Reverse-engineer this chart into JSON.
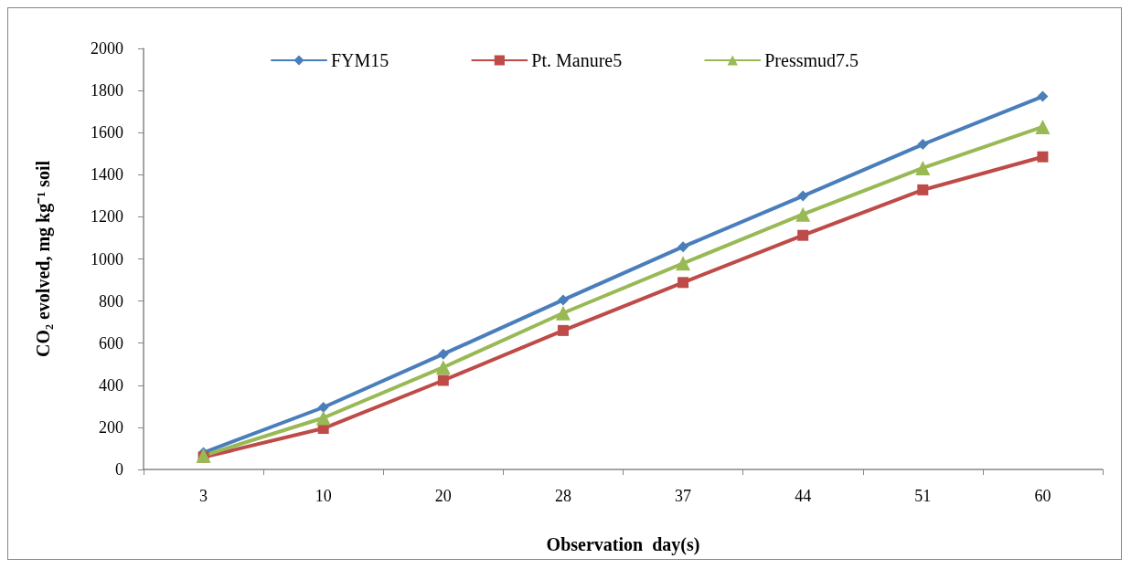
{
  "chart_data": {
    "type": "line",
    "xlabel": "Observation  day(s)",
    "ylabel": "CO₂ evolved, mg kg⁻¹ soil",
    "categories": [
      "3",
      "10",
      "20",
      "28",
      "37",
      "44",
      "51",
      "60"
    ],
    "series": [
      {
        "name": "FYM15",
        "color": "#4a7ebb",
        "marker": "diamond",
        "values": [
          80,
          295,
          548,
          805,
          1058,
          1299,
          1544,
          1772
        ]
      },
      {
        "name": "Pt. Manure5",
        "color": "#be4b48",
        "marker": "square",
        "values": [
          58,
          195,
          423,
          660,
          888,
          1112,
          1328,
          1485
        ]
      },
      {
        "name": "Pressmud7.5",
        "color": "#98b954",
        "marker": "triangle",
        "values": [
          66,
          245,
          485,
          743,
          979,
          1212,
          1432,
          1627
        ]
      }
    ],
    "ylim": [
      0,
      2000
    ],
    "yticks": [
      0,
      200,
      400,
      600,
      800,
      1000,
      1200,
      1400,
      1600,
      1800,
      2000
    ],
    "grid": false,
    "legend": "top",
    "line_style": "solid"
  }
}
